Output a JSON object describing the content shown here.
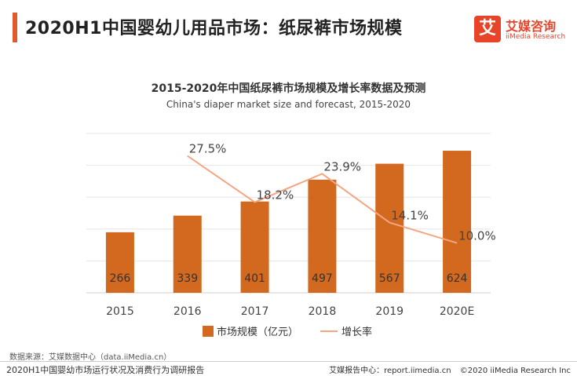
{
  "header": {
    "title": "2020H1中国婴幼儿用品市场：纸尿裤市场规模",
    "logo_mark": "艾",
    "logo_cn": "艾媒咨询",
    "logo_en": "iiMedia Research"
  },
  "chart_data": {
    "type": "bar",
    "title": "2015-2020年中国纸尿裤市场规模及增长率数据及预测",
    "subtitle": "China's diaper market size and forecast, 2015-2020",
    "categories": [
      "2015",
      "2016",
      "2017",
      "2018",
      "2019",
      "2020E"
    ],
    "series": [
      {
        "name": "市场规模（亿元）",
        "type": "bar",
        "values": [
          266,
          339,
          401,
          497,
          567,
          624
        ],
        "color": "#d2691e"
      },
      {
        "name": "增长率",
        "type": "line",
        "values": [
          null,
          27.5,
          18.2,
          23.9,
          14.1,
          10.0
        ],
        "labels": [
          "",
          "27.5%",
          "18.2%",
          "23.9%",
          "14.1%",
          "10.0%"
        ],
        "color": "#f4a582"
      }
    ],
    "ylim": [
      0,
      700
    ],
    "y2lim": [
      0,
      32
    ],
    "grid": true,
    "legend_position": "bottom"
  },
  "footer": {
    "source": "数据来源：艾媒数据中心（data.iiMedia.cn）",
    "report": "2020H1中国婴幼市场运行状况及消费行为调研报告",
    "center": "艾媒报告中心：report.iimedia.cn",
    "copyright": "©2020  iiMedia Research  Inc"
  }
}
